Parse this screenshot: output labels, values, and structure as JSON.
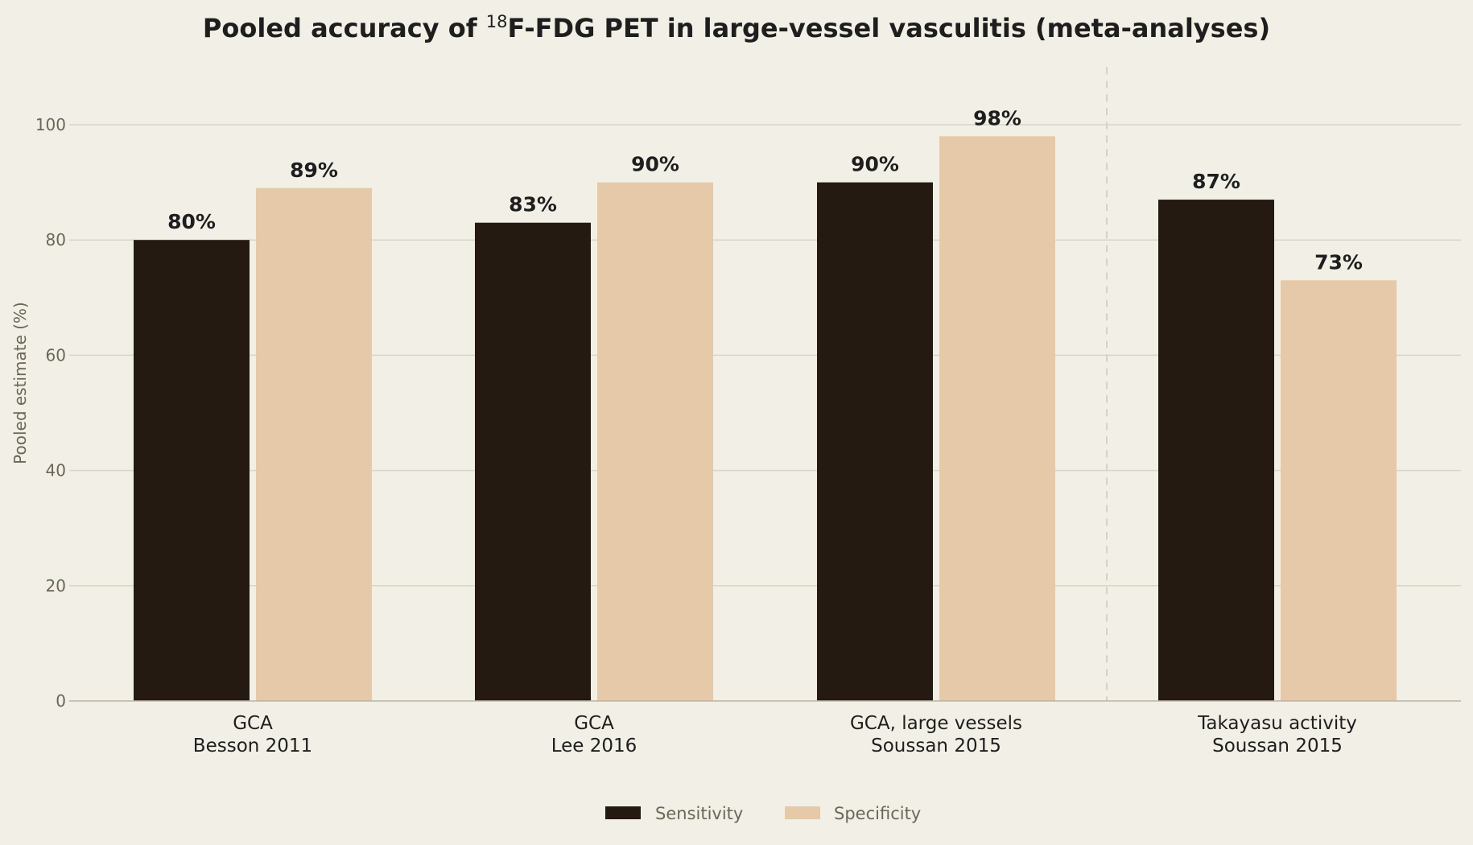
{
  "chart_data": {
    "type": "bar",
    "title": {
      "prefix": "Pooled accuracy of ",
      "superscript": "18",
      "suffix": "F-FDG PET in large-vessel vasculitis (meta-analyses)"
    },
    "xlabel": "",
    "ylabel": "Pooled estimate (%)",
    "ylim": [
      0,
      110
    ],
    "yticks": [
      0,
      20,
      40,
      60,
      80,
      100
    ],
    "grid": true,
    "legend_position": "bottom-center",
    "value_suffix": "%",
    "categories": [
      [
        "GCA",
        "Besson 2011"
      ],
      [
        "GCA",
        "Lee 2016"
      ],
      [
        "GCA, large vessels",
        "Soussan 2015"
      ],
      [
        "Takayasu activity",
        "Soussan 2015"
      ]
    ],
    "divider_between_categories": [
      2,
      3
    ],
    "series": [
      {
        "name": "Sensitivity",
        "color": "#241a12",
        "values": [
          80,
          83,
          90,
          87
        ]
      },
      {
        "name": "Specificity",
        "color": "#e6c9a8",
        "values": [
          89,
          90,
          98,
          73
        ]
      }
    ]
  }
}
